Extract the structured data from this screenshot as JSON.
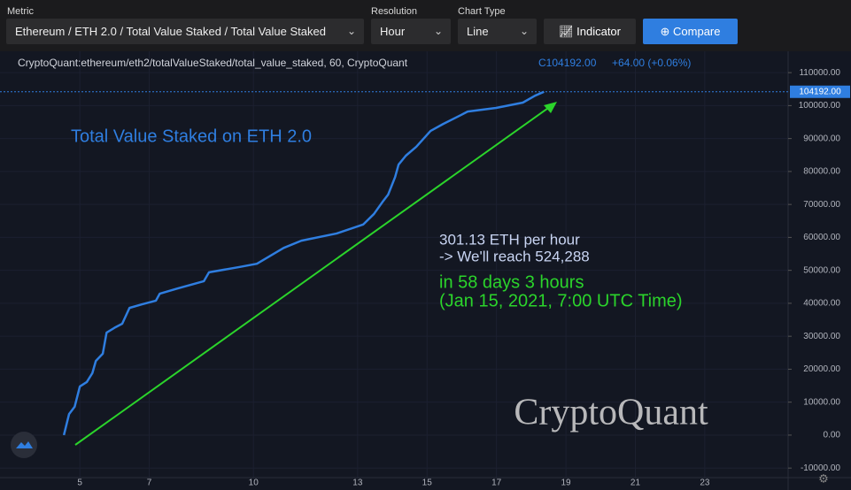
{
  "toolbar": {
    "metric_label": "Metric",
    "metric_value": "Ethereum / ETH 2.0 / Total Value Staked / Total Value Staked",
    "resolution_label": "Resolution",
    "resolution_value": "Hour",
    "chart_type_label": "Chart Type",
    "chart_type_value": "Line",
    "indicator_button": "Indicator",
    "compare_button": "Compare"
  },
  "legend_header": {
    "symbol": "CryptoQuant:ethereum/eth2/totalValueStaked/total_value_staked, 60, CryptoQuant",
    "close": "C104192.00",
    "change": "+64.00 (+0.06%)",
    "price_tag": "104192.00"
  },
  "watermark": "CryptoQuant",
  "chart_data": {
    "type": "line",
    "title": "Total Value Staked on ETH 2.0",
    "annotations": [
      "301.13 ETH per hour",
      "-> We'll reach 524,288",
      "in 58 days 3 hours",
      "(Jan 15, 2021, 7:00 UTC Time)"
    ],
    "xlim": [
      2.7,
      25.4
    ],
    "xticks": [
      5,
      7,
      10,
      13,
      15,
      17,
      19,
      21,
      23
    ],
    "ylim": [
      -12900,
      115400
    ],
    "yticks": [
      {
        "value": -10000,
        "label": "-10000.00"
      },
      {
        "value": 0,
        "label": "0.00"
      },
      {
        "value": 10000,
        "label": "10000.00"
      },
      {
        "value": 20000,
        "label": "20000.00"
      },
      {
        "value": 30000,
        "label": "30000.00"
      },
      {
        "value": 40000,
        "label": "40000.00"
      },
      {
        "value": 50000,
        "label": "50000.00"
      },
      {
        "value": 60000,
        "label": "60000.00"
      },
      {
        "value": 70000,
        "label": "70000.00"
      },
      {
        "value": 80000,
        "label": "80000.00"
      },
      {
        "value": 90000,
        "label": "90000.00"
      },
      {
        "value": 100000,
        "label": "100000.00"
      },
      {
        "value": 110000,
        "label": "110000.00"
      }
    ],
    "grid": true,
    "series": [
      {
        "name": "total_value_staked",
        "color": "#2f7ee0",
        "x": [
          4.54,
          4.69,
          4.85,
          5,
          5.2,
          5.36,
          5.46,
          5.66,
          5.77,
          6.02,
          6.22,
          6.43,
          6.79,
          7.19,
          7.3,
          7.81,
          8.57,
          8.72,
          9.59,
          10.1,
          10.87,
          11.38,
          12.4,
          13.16,
          13.47,
          13.72,
          13.88,
          14.08,
          14.18,
          14.39,
          14.69,
          15.1,
          15.46,
          15.97,
          16.17,
          16.99,
          17.76,
          18.11,
          18.37
        ],
        "values": [
          0,
          6400,
          8600,
          14750,
          16100,
          18800,
          22500,
          24700,
          31100,
          32700,
          33800,
          38600,
          39700,
          40800,
          42900,
          44500,
          46700,
          49400,
          51000,
          52000,
          56800,
          59000,
          61200,
          63900,
          67100,
          70800,
          73000,
          78300,
          82100,
          84800,
          87500,
          92300,
          94400,
          97100,
          98200,
          99300,
          100900,
          103000,
          104192
        ]
      }
    ]
  }
}
